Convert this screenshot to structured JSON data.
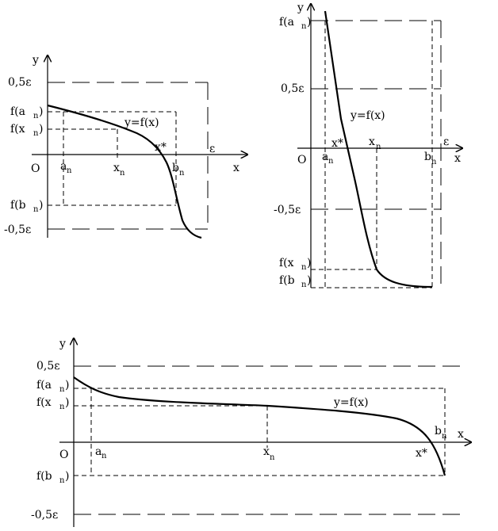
{
  "diagram1": {
    "y_axis": "y",
    "x_axis": "x",
    "origin": "O",
    "level_pos": "0,5ε",
    "level_neg": "-0,5ε",
    "epsilon": "ε",
    "f_an_main": "f(a",
    "f_an_sub": "n",
    "f_an_close": ")",
    "f_xn_main": "f(x",
    "f_xn_sub": "n",
    "f_xn_close": ")",
    "f_bn_main": "f(b",
    "f_bn_sub": "n",
    "f_bn_close": ")",
    "an_main": "a",
    "an_sub": "n",
    "xn_main": "x",
    "xn_sub": "n",
    "bn_main": "b",
    "bn_sub": "n",
    "xstar": "x*",
    "curve_label": "y=f(x)"
  },
  "diagram2": {
    "y_axis": "y",
    "x_axis": "x",
    "origin": "O",
    "level_pos": "0,5ε",
    "level_neg": "-0,5ε",
    "epsilon": "ε",
    "f_an_main": "f(a",
    "f_an_sub": "n",
    "f_an_close": ")",
    "f_xn_main": "f(x",
    "f_xn_sub": "n",
    "f_xn_close": ")",
    "f_bn_main": "f(b",
    "f_bn_sub": "n",
    "f_bn_close": ")",
    "an_main": "a",
    "an_sub": "n",
    "xn_main": "x",
    "xn_sub": "n",
    "bn_main": "b",
    "bn_sub": "n",
    "xstar": "x*",
    "curve_label": "y=f(x)"
  },
  "diagram3": {
    "y_axis": "y",
    "x_axis": "x",
    "origin": "O",
    "level_pos": "0,5ε",
    "level_neg": "-0,5ε",
    "f_an_main": "f(a",
    "f_an_sub": "n",
    "f_an_close": ")",
    "f_xn_main": "f(x",
    "f_xn_sub": "n",
    "f_xn_close": ")",
    "f_bn_main": "f(b",
    "f_bn_sub": "n",
    "f_bn_close": ")",
    "an_main": "a",
    "an_sub": "n",
    "xn_main": "x",
    "xn_sub": "n",
    "bn_main": "b",
    "bn_sub": "n",
    "xstar": "x*",
    "curve_label": "y=f(x)"
  }
}
